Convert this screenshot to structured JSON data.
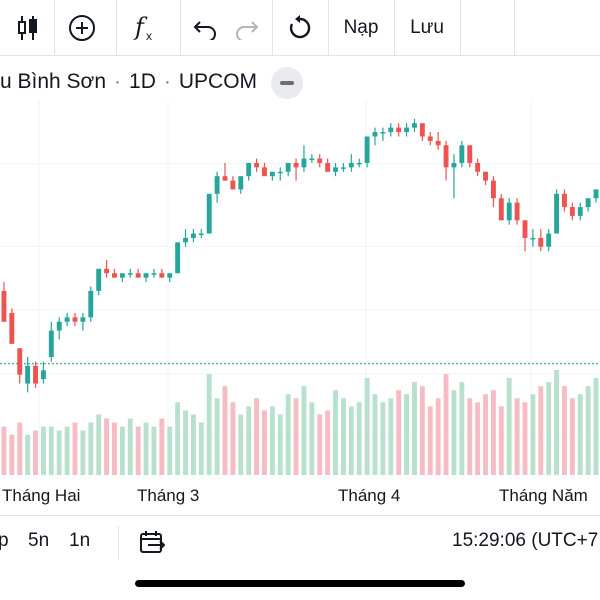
{
  "toolbar": {
    "icons": [
      "candles-icon",
      "add-circle-icon",
      "function-icon",
      "undo-icon",
      "redo-icon",
      "reload-icon"
    ],
    "load_label": "Nạp",
    "save_label": "Lưu"
  },
  "symbol": {
    "name": "u Bình Sơn",
    "interval": "1D",
    "exchange": "UPCOM"
  },
  "colors": {
    "up": "#26a69a",
    "down": "#ef5350",
    "up_volume": "#b7e1cc",
    "down_volume": "#f7bcc3",
    "price_line": "#26a69a"
  },
  "time_axis": {
    "labels": [
      "Tháng Hai",
      "Tháng 3",
      "Tháng 4",
      "Tháng Năm"
    ]
  },
  "bottom_bar": {
    "ranges": [
      "p",
      "5n",
      "1n"
    ],
    "time": "15:29:06 (UTC+7"
  },
  "chart_data": {
    "type": "candlestick",
    "price_line_level": 40.5,
    "candles": [
      {
        "o": 57,
        "h": 59,
        "l": 50,
        "c": 50
      },
      {
        "o": 52,
        "h": 53,
        "l": 45,
        "c": 45
      },
      {
        "o": 44,
        "h": 44,
        "l": 36,
        "c": 38
      },
      {
        "o": 36,
        "h": 42,
        "l": 34,
        "c": 40
      },
      {
        "o": 40,
        "h": 41,
        "l": 35,
        "c": 36
      },
      {
        "o": 37,
        "h": 41,
        "l": 36,
        "c": 39
      },
      {
        "o": 42,
        "h": 50,
        "l": 41,
        "c": 48
      },
      {
        "o": 48,
        "h": 51,
        "l": 46,
        "c": 50
      },
      {
        "o": 50,
        "h": 52,
        "l": 49,
        "c": 51
      },
      {
        "o": 51,
        "h": 52,
        "l": 49,
        "c": 50
      },
      {
        "o": 50,
        "h": 52,
        "l": 48,
        "c": 51
      },
      {
        "o": 51,
        "h": 58,
        "l": 50,
        "c": 57
      },
      {
        "o": 57,
        "h": 62,
        "l": 56,
        "c": 62
      },
      {
        "o": 62,
        "h": 64,
        "l": 60,
        "c": 61
      },
      {
        "o": 61,
        "h": 62,
        "l": 60,
        "c": 60
      },
      {
        "o": 60,
        "h": 61,
        "l": 59,
        "c": 61
      },
      {
        "o": 61,
        "h": 62,
        "l": 60,
        "c": 61
      },
      {
        "o": 61,
        "h": 62,
        "l": 60,
        "c": 60
      },
      {
        "o": 60,
        "h": 61,
        "l": 59,
        "c": 61
      },
      {
        "o": 61,
        "h": 62,
        "l": 60,
        "c": 61
      },
      {
        "o": 61,
        "h": 62,
        "l": 60,
        "c": 60
      },
      {
        "o": 60,
        "h": 61,
        "l": 59,
        "c": 61
      },
      {
        "o": 61,
        "h": 68,
        "l": 61,
        "c": 68
      },
      {
        "o": 68,
        "h": 71,
        "l": 67,
        "c": 69
      },
      {
        "o": 69,
        "h": 71,
        "l": 68,
        "c": 70
      },
      {
        "o": 70,
        "h": 71,
        "l": 69,
        "c": 70
      },
      {
        "o": 70,
        "h": 79,
        "l": 70,
        "c": 79
      },
      {
        "o": 79,
        "h": 84,
        "l": 77,
        "c": 83
      },
      {
        "o": 83,
        "h": 86,
        "l": 82,
        "c": 82
      },
      {
        "o": 82,
        "h": 83,
        "l": 80,
        "c": 80
      },
      {
        "o": 80,
        "h": 83,
        "l": 79,
        "c": 83
      },
      {
        "o": 83,
        "h": 86,
        "l": 82,
        "c": 86
      },
      {
        "o": 86,
        "h": 87,
        "l": 84,
        "c": 85
      },
      {
        "o": 85,
        "h": 86,
        "l": 83,
        "c": 83
      },
      {
        "o": 83,
        "h": 84,
        "l": 82,
        "c": 84
      },
      {
        "o": 84,
        "h": 85,
        "l": 82,
        "c": 84
      },
      {
        "o": 84,
        "h": 86,
        "l": 83,
        "c": 86
      },
      {
        "o": 86,
        "h": 87,
        "l": 82,
        "c": 85
      },
      {
        "o": 85,
        "h": 90,
        "l": 84,
        "c": 87
      },
      {
        "o": 87,
        "h": 88,
        "l": 86,
        "c": 87
      },
      {
        "o": 87,
        "h": 88,
        "l": 85,
        "c": 86
      },
      {
        "o": 86,
        "h": 87,
        "l": 84,
        "c": 84
      },
      {
        "o": 84,
        "h": 86,
        "l": 83,
        "c": 85
      },
      {
        "o": 85,
        "h": 86,
        "l": 84,
        "c": 85
      },
      {
        "o": 85,
        "h": 88,
        "l": 84,
        "c": 86
      },
      {
        "o": 86,
        "h": 87,
        "l": 85,
        "c": 86
      },
      {
        "o": 86,
        "h": 92,
        "l": 85,
        "c": 92
      },
      {
        "o": 92,
        "h": 94,
        "l": 90,
        "c": 93
      },
      {
        "o": 93,
        "h": 94,
        "l": 91,
        "c": 93
      },
      {
        "o": 93,
        "h": 95,
        "l": 92,
        "c": 94
      },
      {
        "o": 94,
        "h": 95,
        "l": 92,
        "c": 93
      },
      {
        "o": 93,
        "h": 95,
        "l": 92,
        "c": 94
      },
      {
        "o": 94,
        "h": 96,
        "l": 93,
        "c": 95
      },
      {
        "o": 95,
        "h": 95,
        "l": 91,
        "c": 92
      },
      {
        "o": 92,
        "h": 93,
        "l": 90,
        "c": 91
      },
      {
        "o": 91,
        "h": 93,
        "l": 89,
        "c": 90
      },
      {
        "o": 90,
        "h": 91,
        "l": 82,
        "c": 85
      },
      {
        "o": 85,
        "h": 88,
        "l": 78,
        "c": 86
      },
      {
        "o": 86,
        "h": 91,
        "l": 85,
        "c": 90
      },
      {
        "o": 90,
        "h": 90,
        "l": 85,
        "c": 86
      },
      {
        "o": 86,
        "h": 87,
        "l": 83,
        "c": 84
      },
      {
        "o": 84,
        "h": 84,
        "l": 81,
        "c": 82
      },
      {
        "o": 82,
        "h": 83,
        "l": 76,
        "c": 78
      },
      {
        "o": 78,
        "h": 79,
        "l": 73,
        "c": 73
      },
      {
        "o": 73,
        "h": 78,
        "l": 72,
        "c": 77
      },
      {
        "o": 77,
        "h": 78,
        "l": 72,
        "c": 73
      },
      {
        "o": 73,
        "h": 73,
        "l": 66,
        "c": 69
      },
      {
        "o": 69,
        "h": 71,
        "l": 67,
        "c": 69
      },
      {
        "o": 69,
        "h": 71,
        "l": 66,
        "c": 67
      },
      {
        "o": 67,
        "h": 71,
        "l": 66,
        "c": 70
      },
      {
        "o": 70,
        "h": 80,
        "l": 70,
        "c": 79
      },
      {
        "o": 79,
        "h": 80,
        "l": 75,
        "c": 76
      },
      {
        "o": 76,
        "h": 77,
        "l": 73,
        "c": 74
      },
      {
        "o": 74,
        "h": 77,
        "l": 73,
        "c": 76
      },
      {
        "o": 76,
        "h": 78,
        "l": 75,
        "c": 78
      },
      {
        "o": 78,
        "h": 80,
        "l": 77,
        "c": 80
      }
    ],
    "volume": [
      12,
      10,
      13,
      10,
      11,
      12,
      12,
      11,
      12,
      13,
      11,
      13,
      15,
      14,
      13,
      12,
      14,
      12,
      13,
      12,
      14,
      12,
      18,
      16,
      15,
      13,
      25,
      19,
      22,
      18,
      15,
      17,
      19,
      16,
      17,
      15,
      20,
      19,
      22,
      18,
      15,
      16,
      21,
      19,
      17,
      18,
      24,
      20,
      18,
      19,
      21,
      20,
      23,
      22,
      17,
      19,
      25,
      21,
      23,
      19,
      18,
      20,
      21,
      17,
      24,
      19,
      18,
      20,
      22,
      23,
      26,
      22,
      19,
      20,
      22,
      24
    ]
  }
}
